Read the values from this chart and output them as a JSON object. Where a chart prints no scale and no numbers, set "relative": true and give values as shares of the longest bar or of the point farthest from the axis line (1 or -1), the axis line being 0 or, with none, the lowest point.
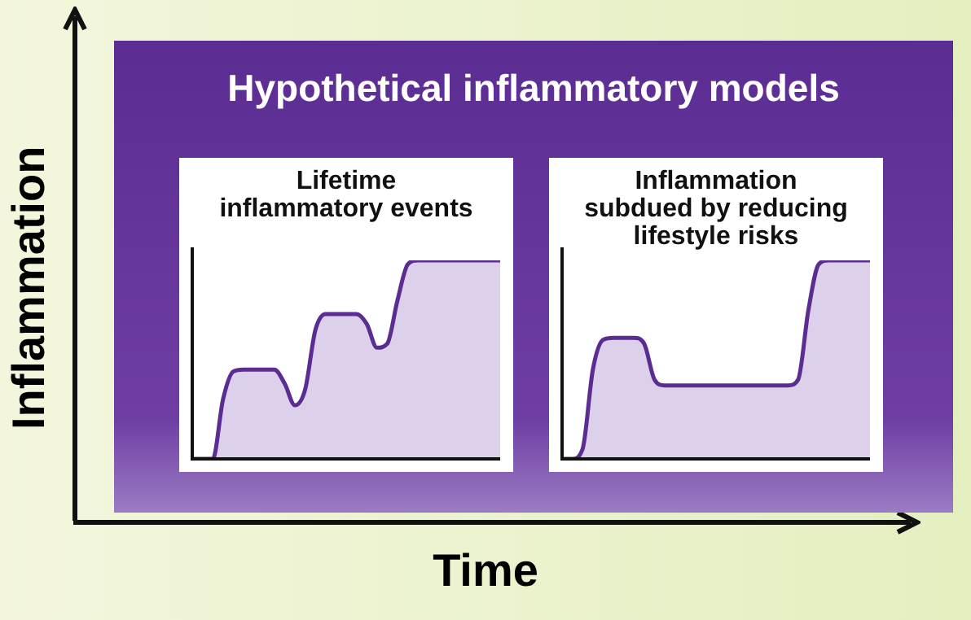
{
  "chart_data": [
    {
      "type": "other",
      "title": "Hypothetical inflammatory models",
      "xlabel": "Time",
      "ylabel": "Inflammation"
    },
    {
      "type": "area",
      "title": "Lifetime inflammatory events",
      "relative": true,
      "color": "#5b2c91",
      "categories": [
        null,
        null,
        null,
        null,
        null,
        null,
        null,
        null,
        null,
        null,
        null,
        null,
        null,
        null,
        null,
        null,
        null,
        null,
        null,
        null,
        null,
        null,
        null,
        null,
        null,
        null,
        null,
        null,
        null,
        null,
        null
      ],
      "values": [
        0,
        0,
        0,
        0.3,
        0.44,
        0.45,
        0.45,
        0.45,
        0.45,
        0.38,
        0.27,
        0.35,
        0.65,
        0.73,
        0.73,
        0.73,
        0.73,
        0.68,
        0.56,
        0.58,
        0.8,
        0.98,
        1,
        1,
        1,
        1,
        1,
        1,
        1,
        1,
        1
      ]
    },
    {
      "type": "area",
      "title": "Inflammation subdued by reducing lifestyle risks",
      "relative": true,
      "color": "#5b2c91",
      "categories": [
        null,
        null,
        null,
        null,
        null,
        null,
        null,
        null,
        null,
        null,
        null,
        null,
        null,
        null,
        null,
        null,
        null,
        null,
        null,
        null,
        null,
        null,
        null,
        null,
        null,
        null,
        null,
        null,
        null,
        null,
        null
      ],
      "values": [
        0,
        0,
        0.05,
        0.45,
        0.6,
        0.61,
        0.61,
        0.61,
        0.58,
        0.4,
        0.37,
        0.37,
        0.37,
        0.37,
        0.37,
        0.37,
        0.37,
        0.37,
        0.37,
        0.37,
        0.37,
        0.37,
        0.37,
        0.4,
        0.75,
        0.98,
        1,
        1,
        1,
        1,
        1
      ]
    }
  ]
}
